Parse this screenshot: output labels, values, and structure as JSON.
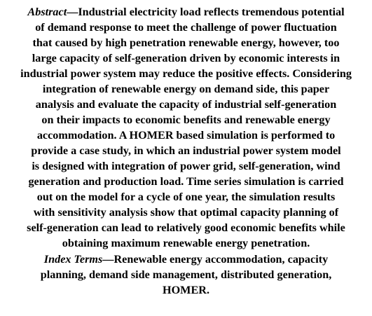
{
  "abstract": {
    "label": "Abstract",
    "lines": [
      "—Industrial electricity load reflects tremendous potential",
      "of demand response to meet the challenge of power fluctuation",
      "that caused by high penetration renewable energy, however, too",
      "large capacity of self-generation driven by economic interests in",
      "industrial power system may reduce the positive effects. Considering",
      "integration of renewable energy on demand side, this paper",
      "analysis and evaluate the capacity of industrial self-generation",
      "on their impacts to economic benefits and renewable energy",
      "accommodation. A HOMER based simulation is performed to",
      "provide a case study, in which an industrial power system model",
      "is designed with integration of power grid, self-generation, wind",
      "generation and production load. Time series simulation is carried",
      "out on the model for a cycle of one year, the simulation results",
      "with sensitivity analysis show that optimal capacity planning of",
      "self-generation can lead to relatively good economic benefits while",
      "obtaining maximum renewable energy penetration."
    ]
  },
  "index_terms": {
    "label": "Index Terms",
    "lines": [
      "—Renewable energy accommodation, capacity",
      "planning, demand side management, distributed generation,",
      "HOMER."
    ]
  }
}
